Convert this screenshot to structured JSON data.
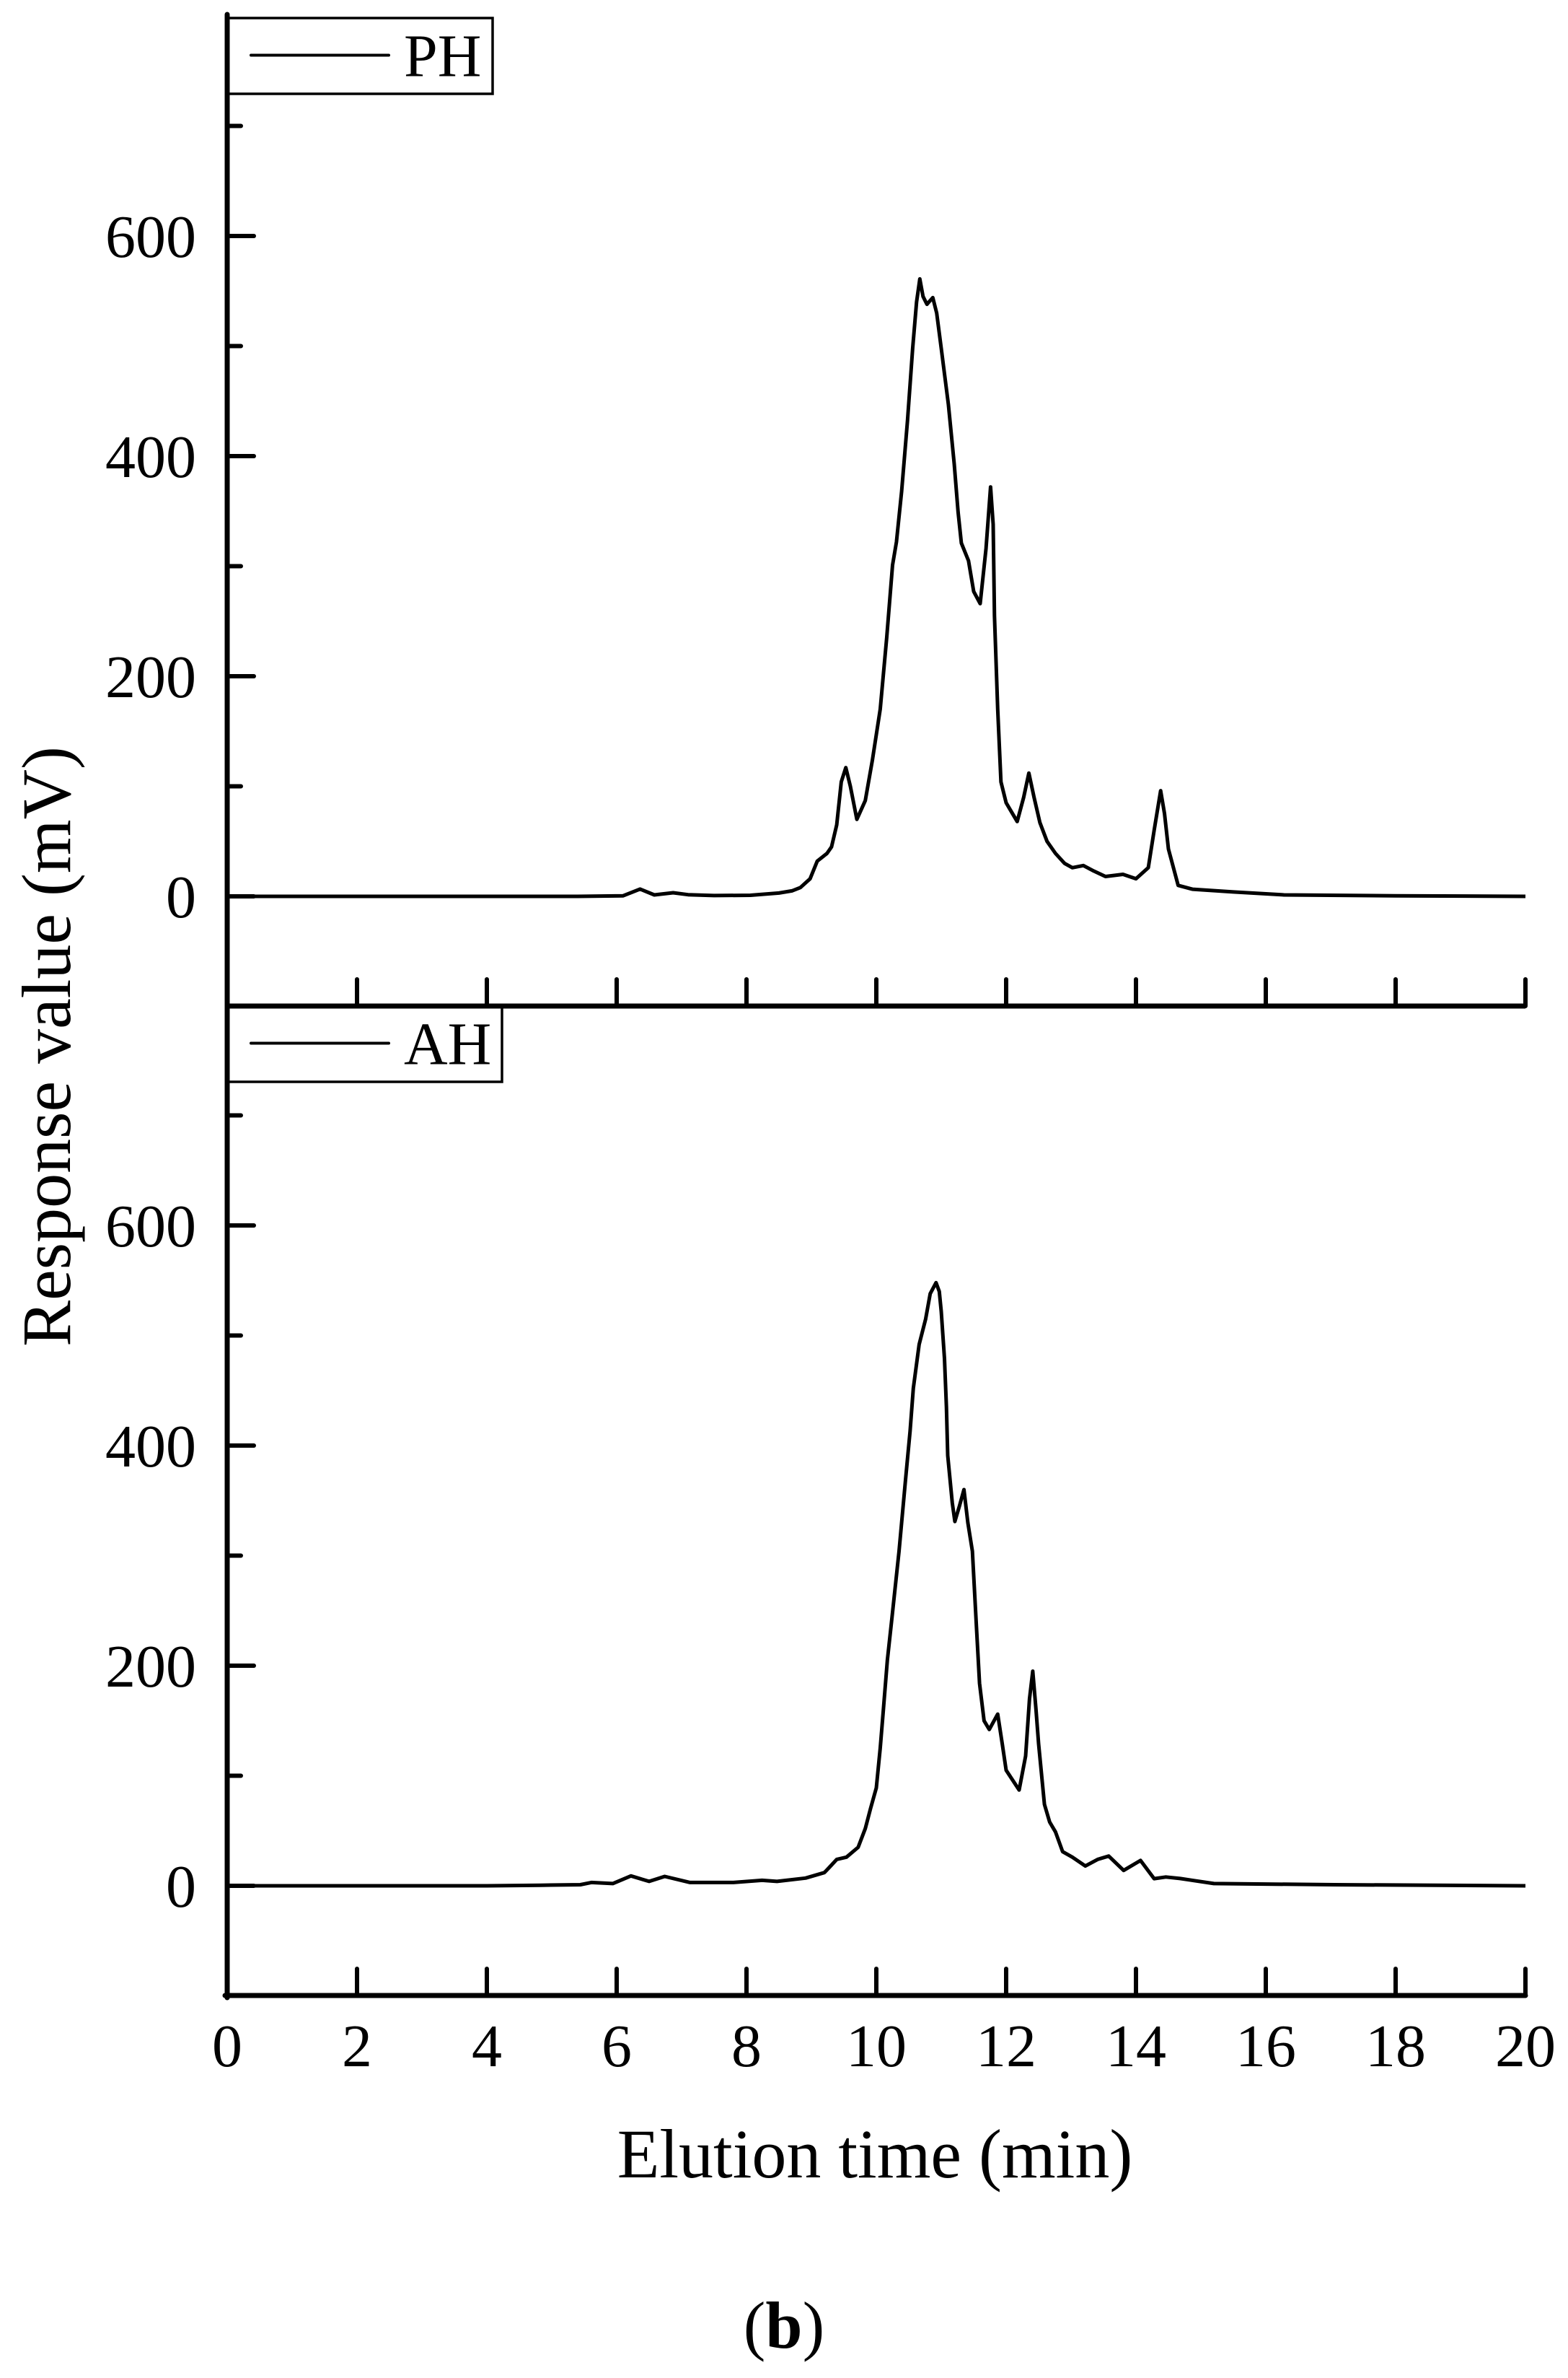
{
  "figure": {
    "caption_open": "(",
    "caption_letter": "b",
    "caption_close": ")"
  },
  "chart_data": {
    "type": "line",
    "layout": "two vertically stacked panels sharing x-axis",
    "xlabel": "Elution time (min)",
    "ylabel": "Response value (mV)",
    "xlim": [
      0,
      20
    ],
    "ylim": [
      -100,
      800
    ],
    "x_ticks": [
      0,
      2,
      4,
      6,
      8,
      10,
      12,
      14,
      16,
      18,
      20
    ],
    "x_tick_labels": [
      "0",
      "2",
      "4",
      "6",
      "8",
      "10",
      "12",
      "14",
      "16",
      "18",
      "20"
    ],
    "y_major_ticks": [
      0,
      200,
      400,
      600
    ],
    "y_tick_labels": [
      "0",
      "200",
      "400",
      "600"
    ],
    "y_minor_ticks": [
      -100,
      100,
      300,
      500,
      700
    ],
    "grid": false,
    "legend_position": "upper left",
    "line_color": "#000000",
    "panels": [
      {
        "name": "PH",
        "legend": "PH",
        "series": [
          {
            "name": "PH",
            "x": [
              0,
              2,
              4,
              5.4,
              6.1,
              6.36,
              6.58,
              6.87,
              7.1,
              7.5,
              8.06,
              8.5,
              8.7,
              8.83,
              8.98,
              9.09,
              9.24,
              9.31,
              9.39,
              9.46,
              9.53,
              9.6,
              9.7,
              9.83,
              9.94,
              10.06,
              10.16,
              10.25,
              10.31,
              10.39,
              10.48,
              10.56,
              10.62,
              10.67,
              10.72,
              10.78,
              10.87,
              10.93,
              11.0,
              11.11,
              11.2,
              11.26,
              11.31,
              11.42,
              11.5,
              11.6,
              11.69,
              11.76,
              11.8,
              11.82,
              11.87,
              11.92,
              12.0,
              12.17,
              12.27,
              12.35,
              12.43,
              12.52,
              12.63,
              12.76,
              12.9,
              13.02,
              13.19,
              13.35,
              13.53,
              13.8,
              14.0,
              14.19,
              14.28,
              14.38,
              14.44,
              14.5,
              14.65,
              14.87,
              15.5,
              16.28,
              18,
              20
            ],
            "y": [
              0,
              0,
              0,
              0,
              0.5,
              6.6,
              1.3,
              3.3,
              1.5,
              0.7,
              1,
              3,
              5,
              8,
              16,
              32,
              39,
              45,
              65,
              104,
              117,
              100,
              70,
              87,
              124,
              170,
              235,
              301,
              322,
              368,
              432,
              498,
              540,
              561,
              545,
              538,
              544,
              530,
              498,
              447,
              393,
              349,
              321,
              305,
              277,
              266,
              316,
              372,
              338,
              255,
              170,
              104,
              85,
              68,
              90,
              112,
              90,
              67,
              50,
              39,
              30,
              26,
              28,
              23,
              18,
              20,
              16,
              26,
              60,
              96,
              75,
              43,
              10,
              6.5,
              4,
              1.3,
              0.5,
              0
            ]
          }
        ]
      },
      {
        "name": "AH",
        "legend": "AH",
        "series": [
          {
            "name": "AH",
            "x": [
              0,
              2,
              4,
              4.83,
              5.44,
              5.61,
              5.94,
              6.22,
              6.5,
              6.74,
              7.13,
              7.8,
              8.24,
              8.47,
              8.91,
              9.2,
              9.28,
              9.39,
              9.54,
              9.72,
              9.83,
              9.91,
              10.0,
              10.06,
              10.11,
              10.17,
              10.24,
              10.35,
              10.45,
              10.52,
              10.57,
              10.66,
              10.76,
              10.83,
              10.92,
              10.97,
              11.0,
              11.05,
              11.08,
              11.1,
              11.17,
              11.21,
              11.28,
              11.35,
              11.41,
              11.48,
              11.54,
              11.59,
              11.66,
              11.74,
              11.87,
              11.94,
              12.0,
              12.2,
              12.3,
              12.36,
              12.41,
              12.46,
              12.5,
              12.59,
              12.67,
              12.76,
              12.87,
              13.02,
              13.22,
              13.41,
              13.58,
              13.81,
              14.07,
              14.28,
              14.46,
              14.68,
              15.2,
              17.06,
              20
            ],
            "y": [
              0,
              0,
              0,
              0.5,
              1,
              3,
              2,
              9,
              4,
              8.5,
              3,
              3,
              5,
              4,
              7,
              12,
              17,
              24,
              26,
              35,
              52,
              70,
              89,
              125,
              161,
              205,
              243,
              304,
              369,
              413,
              452,
              492,
              515,
              538,
              548,
              540,
              522,
              479,
              435,
              391,
              348,
              331,
              345,
              360,
              330,
              304,
              238,
              184,
              150,
              142,
              156,
              129,
              105,
              87,
              118,
              170,
              195,
              160,
              129,
              74,
              58,
              49,
              31,
              26,
              18,
              24,
              27,
              14,
              23,
              6.5,
              8,
              6.6,
              2,
              1,
              0
            ]
          }
        ]
      }
    ]
  }
}
